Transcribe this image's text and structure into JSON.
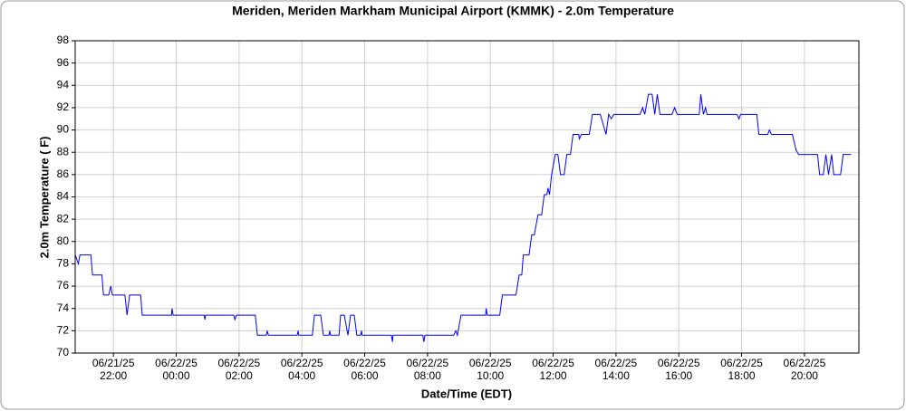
{
  "chart_data": {
    "type": "line",
    "title": "Meriden, Meriden Markham Municipal Airport (KMMK) - 2.0m Temperature",
    "x_label": "Date/Time (EDT)",
    "y_label": "2.0m Temperature ( F)",
    "color": "#0000ff",
    "grid": true,
    "x": [
      "2025-06-21T20:47",
      "2025-06-21T20:53",
      "2025-06-21T20:56",
      "2025-06-21T21:17",
      "2025-06-21T21:20",
      "2025-06-21T21:38",
      "2025-06-21T21:41",
      "2025-06-21T21:51",
      "2025-06-21T21:55",
      "2025-06-21T21:58",
      "2025-06-21T22:22",
      "2025-06-21T22:26",
      "2025-06-21T22:31",
      "2025-06-21T22:52",
      "2025-06-21T22:55",
      "2025-06-21T23:51",
      "2025-06-21T23:52",
      "2025-06-21T23:54",
      "2025-06-22T00:53",
      "2025-06-22T00:55",
      "2025-06-22T00:56",
      "2025-06-22T01:50",
      "2025-06-22T01:52",
      "2025-06-22T01:55",
      "2025-06-22T02:31",
      "2025-06-22T02:35",
      "2025-06-22T02:52",
      "2025-06-22T02:54",
      "2025-06-22T02:56",
      "2025-06-22T03:51",
      "2025-06-22T03:53",
      "2025-06-22T03:54",
      "2025-06-22T04:20",
      "2025-06-22T04:24",
      "2025-06-22T04:36",
      "2025-06-22T04:41",
      "2025-06-22T04:52",
      "2025-06-22T04:53",
      "2025-06-22T04:55",
      "2025-06-22T05:11",
      "2025-06-22T05:14",
      "2025-06-22T05:21",
      "2025-06-22T05:28",
      "2025-06-22T05:33",
      "2025-06-22T05:40",
      "2025-06-22T05:45",
      "2025-06-22T05:52",
      "2025-06-22T05:54",
      "2025-06-22T05:55",
      "2025-06-22T06:51",
      "2025-06-22T06:53",
      "2025-06-22T06:54",
      "2025-06-22T07:51",
      "2025-06-22T07:53",
      "2025-06-22T07:55",
      "2025-06-22T08:50",
      "2025-06-22T08:54",
      "2025-06-22T08:57",
      "2025-06-22T09:04",
      "2025-06-22T09:51",
      "2025-06-22T09:52",
      "2025-06-22T09:54",
      "2025-06-22T10:18",
      "2025-06-22T10:23",
      "2025-06-22T10:49",
      "2025-06-22T10:55",
      "2025-06-22T11:00",
      "2025-06-22T11:03",
      "2025-06-22T11:14",
      "2025-06-22T11:19",
      "2025-06-22T11:24",
      "2025-06-22T11:31",
      "2025-06-22T11:38",
      "2025-06-22T11:43",
      "2025-06-22T11:48",
      "2025-06-22T11:50",
      "2025-06-22T11:53",
      "2025-06-22T11:57",
      "2025-06-22T12:04",
      "2025-06-22T12:09",
      "2025-06-22T12:14",
      "2025-06-22T12:21",
      "2025-06-22T12:26",
      "2025-06-22T12:33",
      "2025-06-22T12:38",
      "2025-06-22T12:49",
      "2025-06-22T12:50",
      "2025-06-22T12:54",
      "2025-06-22T13:09",
      "2025-06-22T13:15",
      "2025-06-22T13:30",
      "2025-06-22T13:41",
      "2025-06-22T13:46",
      "2025-06-22T13:51",
      "2025-06-22T13:56",
      "2025-06-22T14:46",
      "2025-06-22T14:51",
      "2025-06-22T14:55",
      "2025-06-22T15:02",
      "2025-06-22T15:09",
      "2025-06-22T15:14",
      "2025-06-22T15:19",
      "2025-06-22T15:24",
      "2025-06-22T15:47",
      "2025-06-22T15:52",
      "2025-06-22T15:57",
      "2025-06-22T16:39",
      "2025-06-22T16:42",
      "2025-06-22T16:47",
      "2025-06-22T16:51",
      "2025-06-22T16:54",
      "2025-06-22T17:51",
      "2025-06-22T17:55",
      "2025-06-22T17:58",
      "2025-06-22T18:29",
      "2025-06-22T18:33",
      "2025-06-22T18:50",
      "2025-06-22T18:53",
      "2025-06-22T18:57",
      "2025-06-22T19:37",
      "2025-06-22T19:44",
      "2025-06-22T19:49",
      "2025-06-22T20:25",
      "2025-06-22T20:29",
      "2025-06-22T20:36",
      "2025-06-22T20:41",
      "2025-06-22T20:46",
      "2025-06-22T20:52",
      "2025-06-22T20:56",
      "2025-06-22T21:09",
      "2025-06-22T21:14",
      "2025-06-22T21:29"
    ],
    "values": [
      78.8,
      78.0,
      78.8,
      78.8,
      77.0,
      77.0,
      75.2,
      75.2,
      76.0,
      75.2,
      75.2,
      73.4,
      75.2,
      75.2,
      73.4,
      73.4,
      74.0,
      73.4,
      73.4,
      73.0,
      73.4,
      73.4,
      73.0,
      73.4,
      73.4,
      71.6,
      71.6,
      72.0,
      71.6,
      71.6,
      72.0,
      71.6,
      71.6,
      73.4,
      73.4,
      71.6,
      71.6,
      72.0,
      71.6,
      71.6,
      73.4,
      73.4,
      71.6,
      73.4,
      73.4,
      71.6,
      71.6,
      72.0,
      71.6,
      71.6,
      71.0,
      71.6,
      71.6,
      71.0,
      71.6,
      71.6,
      72.0,
      71.6,
      73.4,
      73.4,
      74.0,
      73.4,
      73.4,
      75.2,
      75.2,
      77.0,
      77.0,
      78.8,
      78.8,
      80.6,
      80.6,
      82.4,
      82.4,
      84.2,
      84.2,
      84.8,
      84.2,
      86.0,
      87.8,
      87.8,
      86.0,
      86.0,
      87.8,
      87.8,
      89.6,
      89.6,
      89.2,
      89.6,
      89.6,
      91.4,
      91.4,
      89.6,
      91.4,
      91.0,
      91.4,
      91.4,
      92.0,
      91.4,
      93.2,
      93.2,
      91.4,
      93.2,
      91.4,
      91.4,
      92.0,
      91.4,
      91.4,
      93.2,
      91.4,
      92.0,
      91.4,
      91.4,
      91.0,
      91.4,
      91.4,
      89.6,
      89.6,
      90.0,
      89.6,
      89.6,
      88.2,
      87.8,
      87.8,
      86.0,
      86.0,
      87.8,
      86.0,
      87.8,
      86.0,
      86.0,
      87.8,
      87.8
    ],
    "xlim": [
      "2025-06-21T20:47",
      "2025-06-22T21:44"
    ],
    "xticks": [
      {
        "value": "2025-06-21T22:00",
        "label": [
          "06/21/25",
          "22:00"
        ]
      },
      {
        "value": "2025-06-22T00:00",
        "label": [
          "06/22/25",
          "00:00"
        ]
      },
      {
        "value": "2025-06-22T02:00",
        "label": [
          "06/22/25",
          "02:00"
        ]
      },
      {
        "value": "2025-06-22T04:00",
        "label": [
          "06/22/25",
          "04:00"
        ]
      },
      {
        "value": "2025-06-22T06:00",
        "label": [
          "06/22/25",
          "06:00"
        ]
      },
      {
        "value": "2025-06-22T08:00",
        "label": [
          "06/22/25",
          "08:00"
        ]
      },
      {
        "value": "2025-06-22T10:00",
        "label": [
          "06/22/25",
          "10:00"
        ]
      },
      {
        "value": "2025-06-22T12:00",
        "label": [
          "06/22/25",
          "12:00"
        ]
      },
      {
        "value": "2025-06-22T14:00",
        "label": [
          "06/22/25",
          "14:00"
        ]
      },
      {
        "value": "2025-06-22T16:00",
        "label": [
          "06/22/25",
          "16:00"
        ]
      },
      {
        "value": "2025-06-22T18:00",
        "label": [
          "06/22/25",
          "18:00"
        ]
      },
      {
        "value": "2025-06-22T20:00",
        "label": [
          "06/22/25",
          "20:00"
        ]
      }
    ],
    "ylim": [
      70,
      98
    ],
    "yticks": [
      70,
      72,
      74,
      76,
      78,
      80,
      82,
      84,
      86,
      88,
      90,
      92,
      94,
      96,
      98
    ]
  }
}
